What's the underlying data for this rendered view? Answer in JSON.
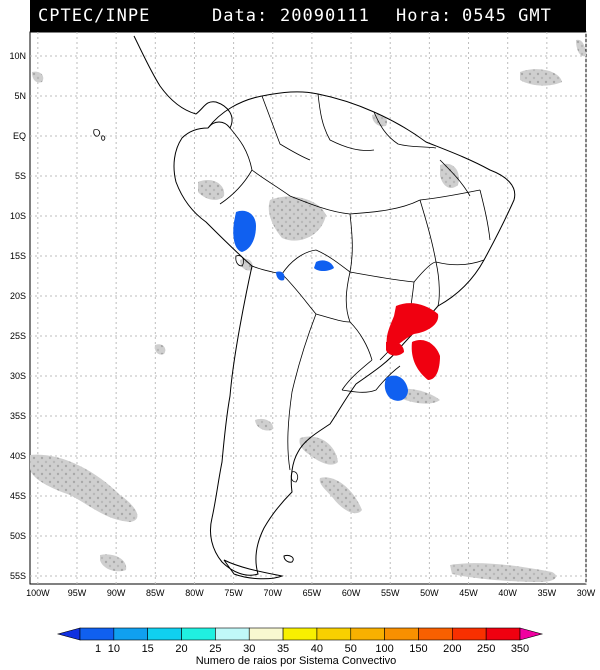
{
  "header": {
    "source": "CPTEC/INPE",
    "date_label": "Data:",
    "date": "20090111",
    "time_label": "Hora:",
    "time": "0545 GMT"
  },
  "map": {
    "lat_labels": [
      "10N",
      "5N",
      "EQ",
      "5S",
      "10S",
      "15S",
      "20S",
      "25S",
      "30S",
      "35S",
      "40S",
      "45S",
      "50S",
      "55S"
    ],
    "lon_labels": [
      "100W",
      "95W",
      "90W",
      "85W",
      "80W",
      "75W",
      "70W",
      "65W",
      "60W",
      "55W",
      "50W",
      "45W",
      "40W",
      "35W",
      "30W"
    ],
    "lat_range": [
      -56,
      13
    ],
    "lon_range": [
      -101,
      -30
    ]
  },
  "colorbar": {
    "ticks": [
      "1",
      "10",
      "15",
      "20",
      "25",
      "30",
      "35",
      "40",
      "50",
      "100",
      "150",
      "200",
      "250",
      "350"
    ],
    "colors": [
      "#1030e0",
      "#1060f0",
      "#10a0f0",
      "#10d0f0",
      "#20f0e0",
      "#c0f8f8",
      "#f8f8d0",
      "#f8f000",
      "#f8d000",
      "#f8b000",
      "#f89000",
      "#f86000",
      "#f83000",
      "#f00010",
      "#f000a0"
    ],
    "caption": "Numero de raios por Sistema Convectivo"
  }
}
